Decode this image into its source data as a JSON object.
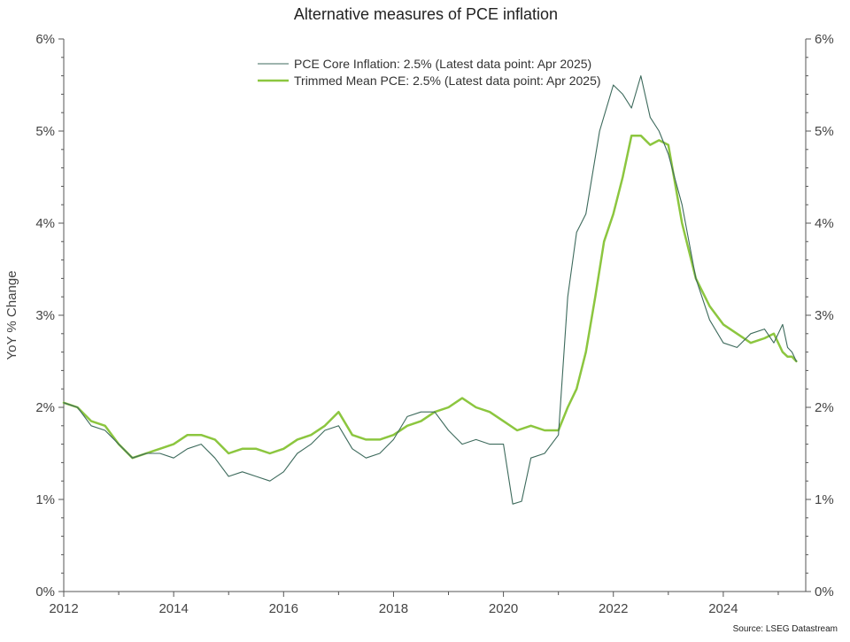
{
  "chart_data": {
    "type": "line",
    "title": "Alternative measures of PCE inflation",
    "ylabel": "YoY % Change",
    "xlabel": "",
    "source": "Source: LSEG Datastream",
    "xlim": [
      2012.0,
      2025.5
    ],
    "ylim": [
      0,
      6
    ],
    "x_ticks": [
      2012,
      2014,
      2016,
      2018,
      2020,
      2022,
      2024
    ],
    "x_tick_labels": [
      "2012",
      "2014",
      "2016",
      "2018",
      "2020",
      "2022",
      "2024"
    ],
    "y_ticks": [
      0,
      1,
      2,
      3,
      4,
      5,
      6
    ],
    "y_tick_labels": [
      "0%",
      "1%",
      "2%",
      "3%",
      "4%",
      "5%",
      "6%"
    ],
    "grid": false,
    "legend_position": "top-center",
    "series": [
      {
        "name": "PCE Core Inflation: 2.5% (Latest data point: Apr 2025)",
        "color": "#3d6a5c",
        "x": [
          2012.0,
          2012.25,
          2012.5,
          2012.75,
          2013.0,
          2013.25,
          2013.5,
          2013.75,
          2014.0,
          2014.25,
          2014.5,
          2014.75,
          2015.0,
          2015.25,
          2015.5,
          2015.75,
          2016.0,
          2016.25,
          2016.5,
          2016.75,
          2017.0,
          2017.25,
          2017.5,
          2017.75,
          2018.0,
          2018.25,
          2018.5,
          2018.75,
          2019.0,
          2019.25,
          2019.5,
          2019.75,
          2020.0,
          2020.17,
          2020.33,
          2020.5,
          2020.75,
          2021.0,
          2021.17,
          2021.33,
          2021.5,
          2021.75,
          2022.0,
          2022.17,
          2022.33,
          2022.5,
          2022.67,
          2022.83,
          2023.0,
          2023.25,
          2023.5,
          2023.75,
          2024.0,
          2024.25,
          2024.5,
          2024.75,
          2024.92,
          2025.08,
          2025.17,
          2025.25,
          2025.33
        ],
        "y": [
          2.05,
          2.0,
          1.8,
          1.75,
          1.6,
          1.45,
          1.5,
          1.5,
          1.45,
          1.55,
          1.6,
          1.45,
          1.25,
          1.3,
          1.25,
          1.2,
          1.3,
          1.5,
          1.6,
          1.75,
          1.8,
          1.55,
          1.45,
          1.5,
          1.65,
          1.9,
          1.95,
          1.95,
          1.75,
          1.6,
          1.65,
          1.6,
          1.6,
          0.95,
          0.98,
          1.45,
          1.5,
          1.7,
          3.2,
          3.9,
          4.1,
          5.0,
          5.5,
          5.4,
          5.25,
          5.6,
          5.15,
          5.0,
          4.75,
          4.2,
          3.4,
          2.95,
          2.7,
          2.65,
          2.8,
          2.85,
          2.7,
          2.9,
          2.65,
          2.6,
          2.5
        ]
      },
      {
        "name": "Trimmed Mean PCE: 2.5% (Latest data point: Apr 2025)",
        "color": "#8cc63f",
        "x": [
          2012.0,
          2012.25,
          2012.5,
          2012.75,
          2013.0,
          2013.25,
          2013.5,
          2013.75,
          2014.0,
          2014.25,
          2014.5,
          2014.75,
          2015.0,
          2015.25,
          2015.5,
          2015.75,
          2016.0,
          2016.25,
          2016.5,
          2016.75,
          2017.0,
          2017.25,
          2017.5,
          2017.75,
          2018.0,
          2018.25,
          2018.5,
          2018.75,
          2019.0,
          2019.25,
          2019.5,
          2019.75,
          2020.0,
          2020.25,
          2020.5,
          2020.75,
          2021.0,
          2021.17,
          2021.33,
          2021.5,
          2021.67,
          2021.83,
          2022.0,
          2022.17,
          2022.33,
          2022.5,
          2022.67,
          2022.83,
          2023.0,
          2023.25,
          2023.5,
          2023.75,
          2024.0,
          2024.25,
          2024.5,
          2024.75,
          2024.92,
          2025.08,
          2025.17,
          2025.25,
          2025.33
        ],
        "y": [
          2.05,
          2.0,
          1.85,
          1.8,
          1.6,
          1.45,
          1.5,
          1.55,
          1.6,
          1.7,
          1.7,
          1.65,
          1.5,
          1.55,
          1.55,
          1.5,
          1.55,
          1.65,
          1.7,
          1.8,
          1.95,
          1.7,
          1.65,
          1.65,
          1.7,
          1.8,
          1.85,
          1.95,
          2.0,
          2.1,
          2.0,
          1.95,
          1.85,
          1.75,
          1.8,
          1.75,
          1.75,
          2.0,
          2.2,
          2.6,
          3.2,
          3.8,
          4.1,
          4.5,
          4.95,
          4.95,
          4.85,
          4.9,
          4.85,
          4.0,
          3.4,
          3.1,
          2.9,
          2.8,
          2.7,
          2.75,
          2.8,
          2.6,
          2.55,
          2.55,
          2.5
        ]
      }
    ]
  }
}
